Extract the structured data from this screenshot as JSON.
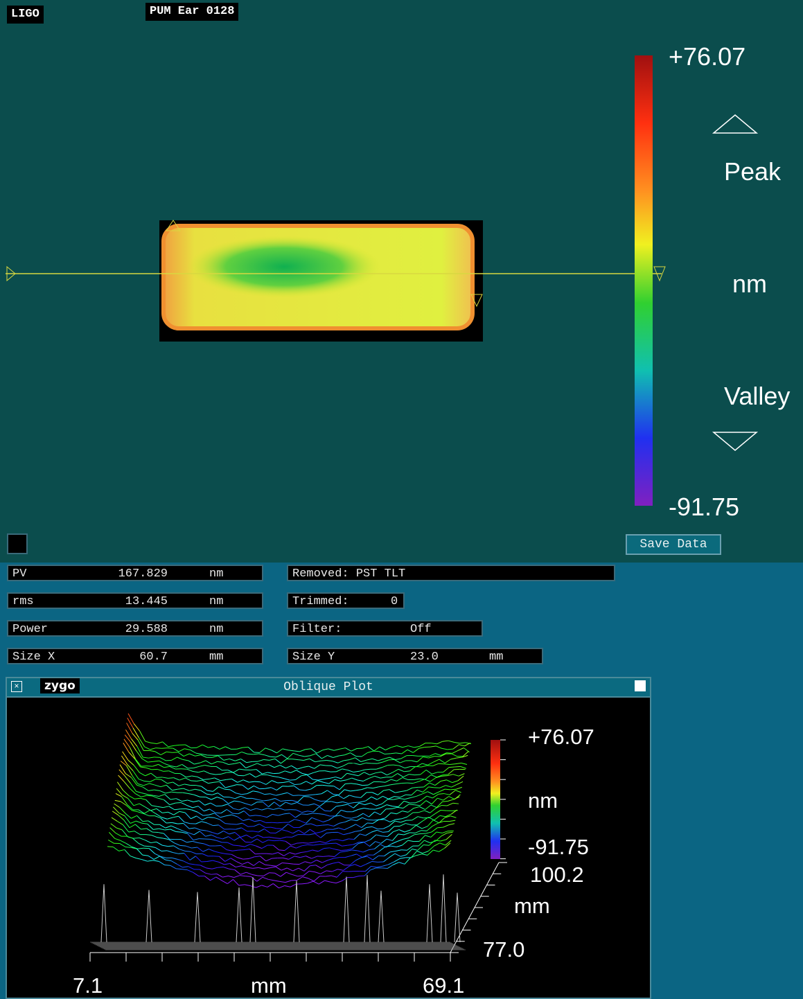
{
  "header": {
    "site": "LIGO",
    "title": "PUM Ear 0128"
  },
  "colorbar": {
    "max": "+76.07",
    "peak": "Peak",
    "unit": "nm",
    "valley": "Valley",
    "min": "-91.75"
  },
  "save_button": "Save Data",
  "stats": [
    {
      "label": "PV",
      "value": "167.829",
      "unit": "nm"
    },
    {
      "label": "rms",
      "value": "13.445",
      "unit": "nm"
    },
    {
      "label": "Power",
      "value": "29.588",
      "unit": "nm"
    },
    {
      "label": "Size X",
      "value": "60.7",
      "unit": "mm"
    }
  ],
  "settings": {
    "removed": "Removed: PST TLT",
    "trimmed_label": "Trimmed:",
    "trimmed": "0",
    "filter_label": "Filter:",
    "filter": "Off",
    "size_y_label": "Size Y",
    "size_y": "23.0",
    "size_y_unit": "mm"
  },
  "oblique_plot": {
    "logo": "zygo",
    "title": "Oblique Plot",
    "scale_max": "+76.07",
    "scale_unit": "nm",
    "scale_min": "-91.75",
    "y_max": "100.2",
    "y_unit": "mm",
    "y_min": "77.0",
    "x_min": "7.1",
    "x_unit": "mm",
    "x_max": "69.1"
  }
}
